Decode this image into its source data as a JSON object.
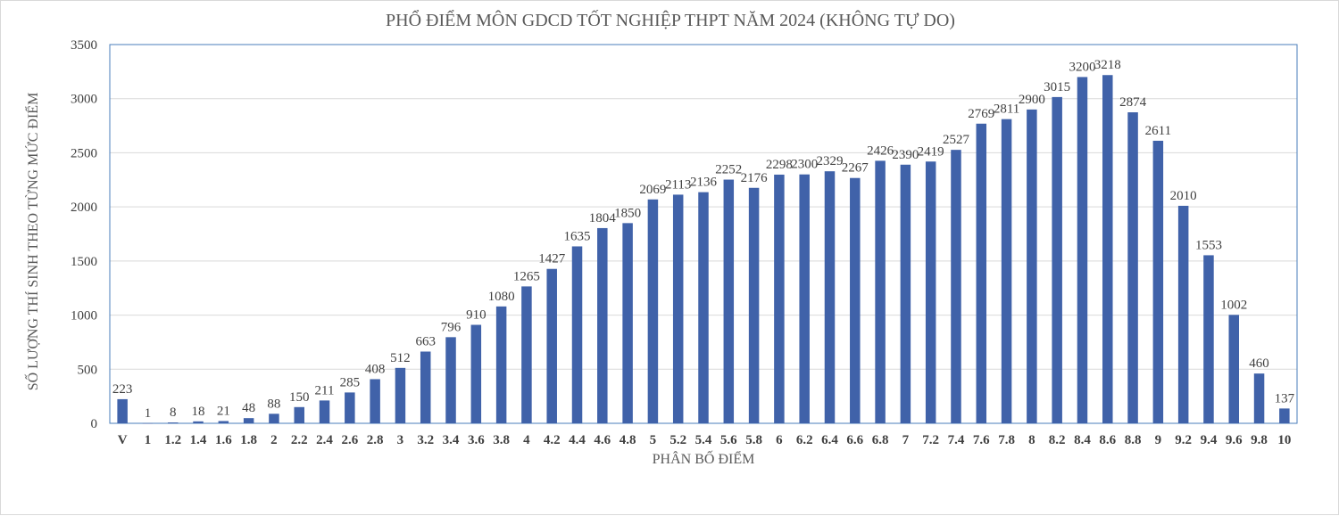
{
  "chart_data": {
    "type": "bar",
    "title": "PHỔ ĐIỂM MÔN GDCD TỐT NGHIỆP THPT NĂM 2024 (KHÔNG TỰ DO)",
    "xlabel": "PHÂN BỐ ĐIỂM",
    "ylabel": "SỐ LƯỢNG THÍ SINH THEO TỪNG MỨC ĐIỂM",
    "ylim": [
      0,
      3500
    ],
    "yticks": [
      "0",
      "500",
      "1000",
      "1500",
      "2000",
      "2500",
      "3000",
      "3500"
    ],
    "categories": [
      "V",
      "1",
      "1.2",
      "1.4",
      "1.6",
      "1.8",
      "2",
      "2.2",
      "2.4",
      "2.6",
      "2.8",
      "3",
      "3.2",
      "3.4",
      "3.6",
      "3.8",
      "4",
      "4.2",
      "4.4",
      "4.6",
      "4.8",
      "5",
      "5.2",
      "5.4",
      "5.6",
      "5.8",
      "6",
      "6.2",
      "6.4",
      "6.6",
      "6.8",
      "7",
      "7.2",
      "7.4",
      "7.6",
      "7.8",
      "8",
      "8.2",
      "8.4",
      "8.6",
      "8.8",
      "9",
      "9.2",
      "9.4",
      "9.6",
      "9.8",
      "10"
    ],
    "values": [
      223,
      1,
      8,
      18,
      21,
      48,
      88,
      150,
      211,
      285,
      408,
      512,
      663,
      796,
      910,
      1080,
      1265,
      1427,
      1635,
      1804,
      1850,
      2069,
      2113,
      2136,
      2252,
      2176,
      2298,
      2300,
      2329,
      2267,
      2426,
      2390,
      2419,
      2527,
      2769,
      2811,
      2900,
      3015,
      3200,
      3218,
      2874,
      2611,
      2010,
      1553,
      1002,
      460,
      137
    ],
    "grid": true,
    "legend": "none",
    "bar_color": "#4062a9",
    "grid_color": "#d9d9d9",
    "plot_border_color": "#4a7ebb"
  }
}
